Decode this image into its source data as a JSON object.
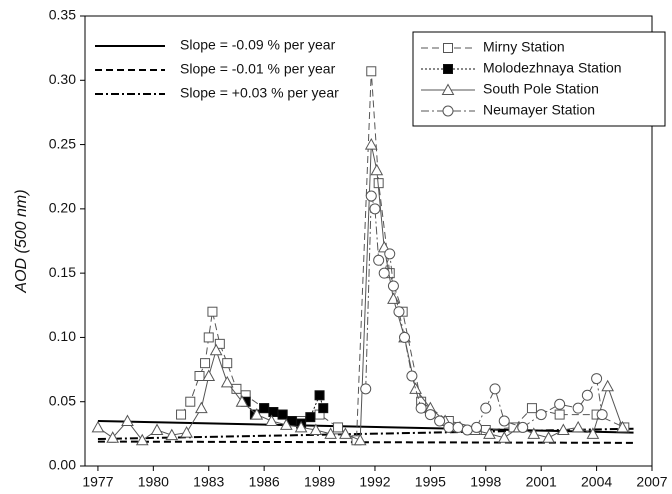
{
  "chart_data": {
    "type": "line",
    "y_label": "AOD (500 nm)",
    "xlim": [
      1976.3,
      2007
    ],
    "xticks": [
      1977,
      1980,
      1983,
      1986,
      1989,
      1992,
      1995,
      1998,
      2001,
      2004,
      2007
    ],
    "ylim": [
      0,
      0.35
    ],
    "yticks": [
      {
        "value": 0,
        "label": "0.00"
      },
      {
        "value": 0.05,
        "label": "0.05"
      },
      {
        "value": 0.1,
        "label": "0.10"
      },
      {
        "value": 0.15,
        "label": "0.15"
      },
      {
        "value": 0.2,
        "label": "0.20"
      },
      {
        "value": 0.25,
        "label": "0.25"
      },
      {
        "value": 0.3,
        "label": "0.30"
      },
      {
        "value": 0.35,
        "label": "0.35"
      }
    ],
    "legend_position": "upper right",
    "series": [
      {
        "name": "Mirny Station",
        "color": "#555",
        "marker": "square-open",
        "dash": "dash",
        "x": [
          1981.5,
          1982,
          1982.5,
          1982.8,
          1983,
          1983.2,
          1983.6,
          1984,
          1984.5,
          1985,
          1986,
          1987,
          1988,
          1989,
          1990,
          1991,
          1991.8,
          1992.2,
          1992.8,
          1993.5,
          1994.5,
          1996,
          1998,
          1999.5,
          2000.5,
          2002,
          2004,
          2005.5
        ],
        "values": [
          0.04,
          0.05,
          0.07,
          0.08,
          0.1,
          0.12,
          0.095,
          0.08,
          0.06,
          0.055,
          0.045,
          0.04,
          0.035,
          0.04,
          0.03,
          0.02,
          0.307,
          0.22,
          0.15,
          0.12,
          0.05,
          0.035,
          0.028,
          0.03,
          0.045,
          0.04,
          0.04,
          0.03
        ]
      },
      {
        "name": "Molodezhnaya Station",
        "color": "#111",
        "marker": "square-filled",
        "dash": "dot",
        "x": [
          1985,
          1985.5,
          1986,
          1986.5,
          1987,
          1987.5,
          1988,
          1988.5,
          1989,
          1989.2
        ],
        "values": [
          0.05,
          0.04,
          0.045,
          0.042,
          0.04,
          0.035,
          0.033,
          0.038,
          0.055,
          0.045
        ]
      },
      {
        "name": "South Pole Station",
        "color": "#555",
        "marker": "triangle-open",
        "dash": "solid",
        "x": [
          1977,
          1977.8,
          1978.6,
          1979.4,
          1980.2,
          1981,
          1981.8,
          1982.6,
          1983,
          1983.4,
          1984,
          1984.8,
          1985.6,
          1986.4,
          1987.2,
          1988,
          1988.8,
          1989.6,
          1990.4,
          1991.2,
          1991.8,
          1992.1,
          1992.5,
          1993,
          1993.6,
          1994.2,
          1995,
          1995.8,
          1996.6,
          1997.4,
          1998.2,
          1999,
          1999.8,
          2000.6,
          2001.4,
          2002.2,
          2003,
          2003.8,
          2004.6,
          2005.4
        ],
        "values": [
          0.03,
          0.022,
          0.035,
          0.02,
          0.028,
          0.024,
          0.026,
          0.045,
          0.07,
          0.09,
          0.065,
          0.05,
          0.04,
          0.035,
          0.032,
          0.03,
          0.028,
          0.025,
          0.025,
          0.02,
          0.25,
          0.23,
          0.17,
          0.13,
          0.1,
          0.06,
          0.045,
          0.035,
          0.03,
          0.028,
          0.025,
          0.022,
          0.03,
          0.025,
          0.022,
          0.028,
          0.03,
          0.025,
          0.062,
          0.03
        ]
      },
      {
        "name": "Neumayer Station",
        "color": "#555",
        "marker": "circle-open",
        "dash": "dashdot",
        "x": [
          1991.5,
          1991.8,
          1992,
          1992.2,
          1992.5,
          1992.8,
          1993,
          1993.3,
          1993.6,
          1994,
          1994.5,
          1995,
          1995.5,
          1996,
          1996.5,
          1997,
          1997.5,
          1998,
          1998.5,
          1999,
          2000,
          2001,
          2002,
          2003,
          2003.5,
          2004,
          2004.3
        ],
        "values": [
          0.06,
          0.21,
          0.2,
          0.16,
          0.15,
          0.165,
          0.14,
          0.12,
          0.1,
          0.07,
          0.045,
          0.04,
          0.035,
          0.03,
          0.03,
          0.028,
          0.03,
          0.045,
          0.06,
          0.035,
          0.03,
          0.04,
          0.048,
          0.045,
          0.055,
          0.068,
          0.04
        ]
      }
    ],
    "trends": [
      {
        "name": "Slope = -0.09 % per year",
        "color": "#000",
        "dash": "solid",
        "x": [
          1977,
          2006
        ],
        "values": [
          0.035,
          0.026
        ]
      },
      {
        "name": "Slope = -0.01 % per year",
        "color": "#000",
        "dash": "dash",
        "x": [
          1977,
          2006
        ],
        "values": [
          0.019,
          0.018
        ]
      },
      {
        "name": "Slope = +0.03 % per year",
        "color": "#000",
        "dash": "dashdot",
        "x": [
          1977,
          2006
        ],
        "values": [
          0.021,
          0.029
        ]
      }
    ]
  }
}
